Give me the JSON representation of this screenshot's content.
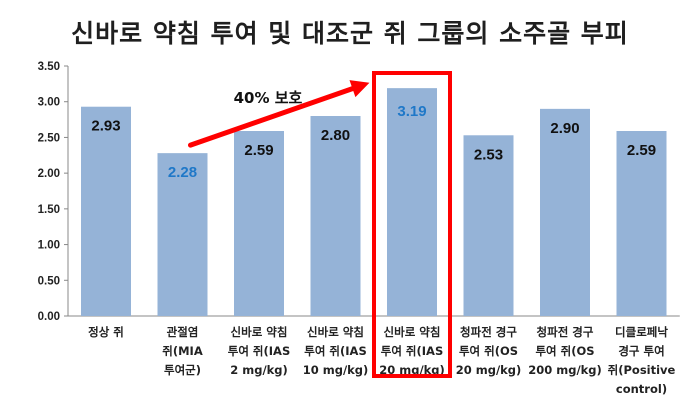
{
  "chart_data": {
    "type": "bar",
    "title": "신바로 약침 투여 및 대조군 쥐 그룹의 소주골 부피",
    "categories": [
      [
        "정상 쥐"
      ],
      [
        "관절염",
        "쥐(MIA",
        "투여군)"
      ],
      [
        "신바로 약침",
        "투여 쥐(IAS",
        "2 mg/kg)"
      ],
      [
        "신바로 약침",
        "투여 쥐(IAS",
        "10 mg/kg)"
      ],
      [
        "신바로 약침",
        "투여 쥐(IAS",
        "20 mg/kg)"
      ],
      [
        "청파전 경구",
        "투여 쥐(OS",
        "20 mg/kg)"
      ],
      [
        "청파전 경구",
        "투여 쥐(OS",
        "200 mg/kg)"
      ],
      [
        "디클로페낙",
        "경구 투여",
        "쥐(Positive",
        "control)"
      ]
    ],
    "values": [
      2.93,
      2.28,
      2.59,
      2.8,
      3.19,
      2.53,
      2.9,
      2.59
    ],
    "value_labels": [
      "2.93",
      "2.28",
      "2.59",
      "2.80",
      "3.19",
      "2.53",
      "2.90",
      "2.59"
    ],
    "yticks": [
      "0.00",
      "0.50",
      "1.00",
      "1.50",
      "2.00",
      "2.50",
      "3.00",
      "3.50"
    ],
    "ylim": [
      0,
      3.5
    ],
    "grid": false,
    "bar_color": "#95b3d7",
    "label_colors": [
      "#111111",
      "#1f78c8",
      "#111111",
      "#111111",
      "#1f78c8",
      "#111111",
      "#111111",
      "#111111"
    ],
    "annotation": {
      "text": "40% 보호",
      "arrow_color": "#ff0000",
      "from_category": 1,
      "to_category": 4
    },
    "highlight_category": 4,
    "highlight_color": "#ff0000"
  }
}
